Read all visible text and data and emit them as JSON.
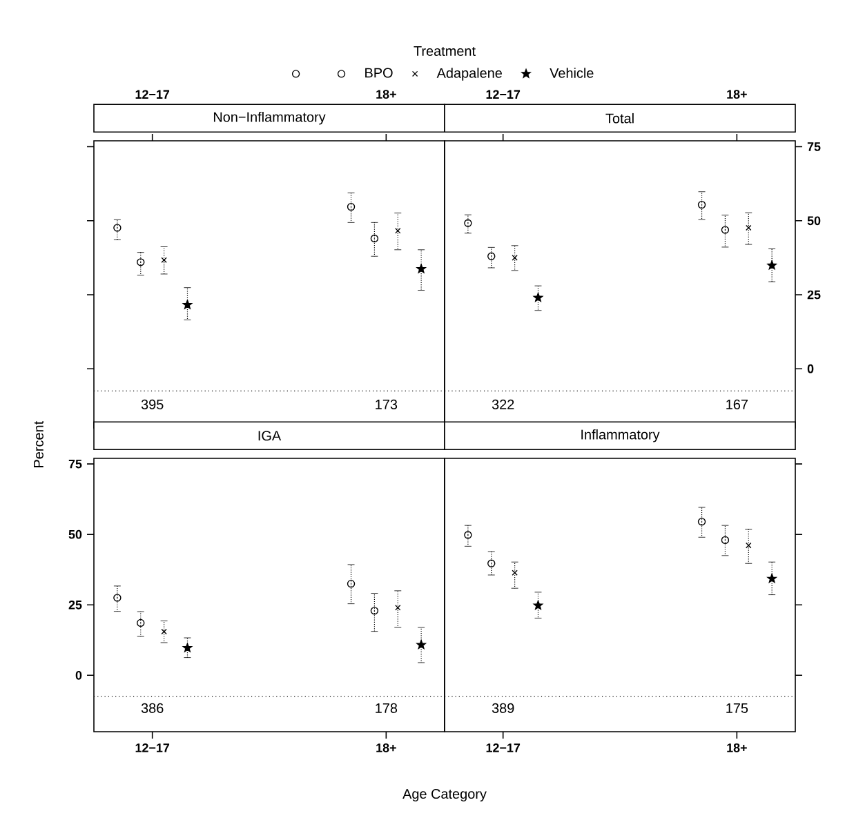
{
  "chart_data": [
    {
      "type": "scatter",
      "title": "Non−Inflammatory",
      "legend": "top",
      "legend_title": "Treatment",
      "categories": [
        "12−17",
        "18+"
      ],
      "ylim": [
        -20,
        77
      ],
      "yticks": [
        0,
        25,
        50,
        75
      ],
      "tick_labels": "x",
      "series": [
        {
          "color": "#000000",
          "marker": "circle",
          "values": [
            47.6,
            54.7
          ],
          "errors": [
            [
              43.6,
              50.4
            ],
            [
              49.4,
              59.4
            ]
          ]
        },
        {
          "name": "BPO",
          "color": "#000000",
          "marker": "circle",
          "values": [
            36.0,
            44.0
          ],
          "errors": [
            [
              31.6,
              39.3
            ],
            [
              38.0,
              49.4
            ]
          ]
        },
        {
          "name": "Adapalene",
          "color": "#000000",
          "marker": "cross",
          "values": [
            36.7,
            46.6
          ],
          "errors": [
            [
              32.0,
              41.2
            ],
            [
              40.2,
              52.6
            ]
          ]
        },
        {
          "name": "Vehicle",
          "color": "#000000",
          "marker": "star",
          "values": [
            21.6,
            33.7
          ],
          "errors": [
            [
              16.5,
              27.4
            ],
            [
              26.5,
              40.2
            ]
          ]
        }
      ],
      "ref_lines": [
        {
          "axis": "y",
          "value": -7.5,
          "line_style": "dotted"
        }
      ],
      "annotations": [
        "395",
        "173"
      ]
    },
    {
      "type": "scatter",
      "title": "Total",
      "categories": [
        "12−17",
        "18+"
      ],
      "ylim": [
        -20,
        77
      ],
      "yticks": [
        0,
        25,
        50,
        75
      ],
      "series": [
        {
          "color": "#000000",
          "marker": "circle",
          "values": [
            49.2,
            55.4
          ],
          "errors": [
            [
              45.8,
              52.0
            ],
            [
              50.4,
              59.8
            ]
          ]
        },
        {
          "color": "#000000",
          "marker": "circle",
          "values": [
            38.0,
            46.9
          ],
          "errors": [
            [
              34.1,
              41.0
            ],
            [
              41.1,
              51.9
            ]
          ]
        },
        {
          "color": "#000000",
          "marker": "cross",
          "values": [
            37.5,
            47.6
          ],
          "errors": [
            [
              33.2,
              41.6
            ],
            [
              42.0,
              52.7
            ]
          ]
        },
        {
          "color": "#000000",
          "marker": "star",
          "values": [
            24.0,
            34.9
          ],
          "errors": [
            [
              19.7,
              28.0
            ],
            [
              29.4,
              40.5
            ]
          ]
        }
      ],
      "ref_lines": [
        {
          "axis": "y",
          "value": -7.5,
          "line_style": "dotted"
        }
      ],
      "annotations": [
        "322",
        "167"
      ]
    },
    {
      "type": "scatter",
      "title": "IGA",
      "xlabel": "Age Category",
      "ylabel": "Percent",
      "categories": [
        "12−17",
        "18+"
      ],
      "ylim": [
        -20,
        77
      ],
      "yticks": [
        0,
        25,
        50,
        75
      ],
      "series": [
        {
          "color": "#000000",
          "marker": "circle",
          "values": [
            27.5,
            32.5
          ],
          "errors": [
            [
              22.7,
              31.7
            ],
            [
              25.4,
              39.3
            ]
          ]
        },
        {
          "color": "#000000",
          "marker": "circle",
          "values": [
            18.6,
            22.9
          ],
          "errors": [
            [
              13.8,
              22.6
            ],
            [
              15.6,
              29.1
            ]
          ]
        },
        {
          "color": "#000000",
          "marker": "cross",
          "values": [
            15.5,
            24.0
          ],
          "errors": [
            [
              11.6,
              19.3
            ],
            [
              17.0,
              30.0
            ]
          ]
        },
        {
          "color": "#000000",
          "marker": "star",
          "values": [
            9.7,
            10.8
          ],
          "errors": [
            [
              6.3,
              13.3
            ],
            [
              4.5,
              17.0
            ]
          ]
        }
      ],
      "ref_lines": [
        {
          "axis": "y",
          "value": -7.5,
          "line_style": "dotted"
        }
      ],
      "annotations": [
        "386",
        "178"
      ]
    },
    {
      "type": "scatter",
      "title": "Inflammatory",
      "categories": [
        "12−17",
        "18+"
      ],
      "ylim": [
        -20,
        77
      ],
      "yticks": [
        0,
        25,
        50,
        75
      ],
      "tick_labels": "x",
      "series": [
        {
          "color": "#000000",
          "marker": "circle",
          "values": [
            49.8,
            54.5
          ],
          "errors": [
            [
              45.8,
              53.2
            ],
            [
              49.0,
              59.6
            ]
          ]
        },
        {
          "color": "#000000",
          "marker": "circle",
          "values": [
            39.7,
            48.0
          ],
          "errors": [
            [
              35.6,
              43.9
            ],
            [
              42.5,
              53.2
            ]
          ]
        },
        {
          "color": "#000000",
          "marker": "cross",
          "values": [
            36.4,
            46.1
          ],
          "errors": [
            [
              30.9,
              40.2
            ],
            [
              39.7,
              51.8
            ]
          ]
        },
        {
          "color": "#000000",
          "marker": "star",
          "values": [
            24.8,
            34.3
          ],
          "errors": [
            [
              20.3,
              29.5
            ],
            [
              28.6,
              40.2
            ]
          ]
        }
      ],
      "ref_lines": [
        {
          "axis": "y",
          "value": -7.5,
          "line_style": "dotted"
        }
      ],
      "annotations": [
        "389",
        "175"
      ]
    }
  ]
}
